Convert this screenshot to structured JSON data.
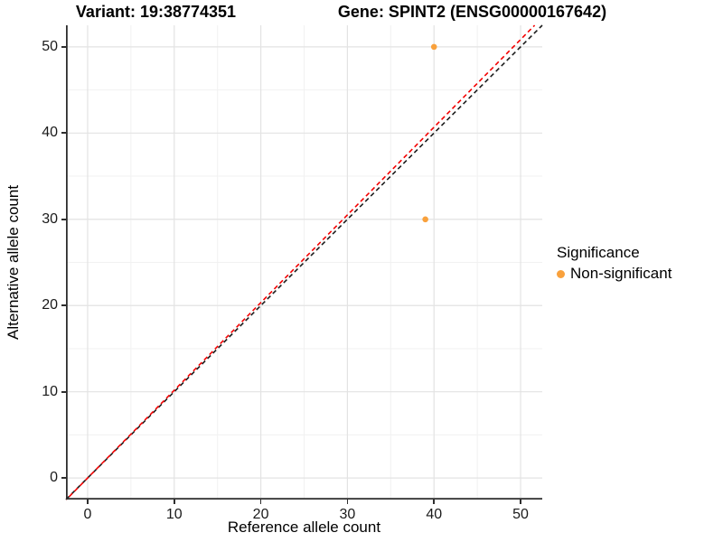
{
  "titles": {
    "variant": "Variant: 19:38774351",
    "gene": "Gene: SPINT2 (ENSG00000167642)"
  },
  "chart_data": {
    "type": "scatter",
    "xlabel": "Reference allele count",
    "ylabel": "Alternative allele count",
    "xlim": [
      -2.5,
      52.5
    ],
    "ylim": [
      -2.5,
      52.5
    ],
    "xticks": [
      0,
      10,
      20,
      30,
      40,
      50
    ],
    "yticks": [
      0,
      10,
      20,
      30,
      40,
      50
    ],
    "minor_ticks": [
      5,
      15,
      25,
      35,
      45
    ],
    "grid": "major+minor",
    "points": [
      {
        "x": 40,
        "y": 50,
        "series": "Non-significant"
      },
      {
        "x": 39,
        "y": 30,
        "series": "Non-significant"
      }
    ],
    "lines": [
      {
        "name": "identity-line",
        "slope": 1.0,
        "intercept": 0,
        "color": "#1c1c1c",
        "style": "dashed"
      },
      {
        "name": "fitted-line",
        "slope": 1.017,
        "intercept": 0,
        "color": "#f40000",
        "style": "dashed"
      }
    ],
    "legend": {
      "title": "Significance",
      "position": "right",
      "items": [
        {
          "label": "Non-significant",
          "color": "#F9A13C"
        }
      ]
    },
    "colors": {
      "point_non_significant": "#F9A13C",
      "grid_major": "#e3e3e3",
      "grid_minor": "#f1f1f1",
      "axis_line": "#2e2e2e"
    }
  }
}
